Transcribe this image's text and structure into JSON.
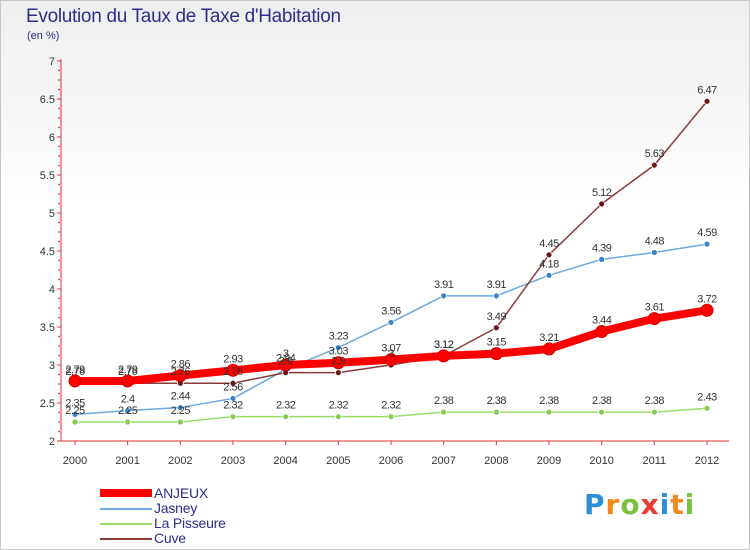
{
  "header": {
    "title": "Evolution du Taux de Taxe d'Habitation",
    "unit": "(en %)"
  },
  "logo": {
    "text": "Proxiti",
    "letter_colors": [
      "#2a8fd6",
      "#f08a1c",
      "#7ac142",
      "#e63a2c",
      "#2a8fd6",
      "#f08a1c",
      "#7ac142"
    ]
  },
  "chart_data": {
    "type": "line",
    "categories": [
      "2000",
      "2001",
      "2002",
      "2003",
      "2004",
      "2005",
      "2006",
      "2007",
      "2008",
      "2009",
      "2010",
      "2011",
      "2012"
    ],
    "ylim": [
      2,
      7
    ],
    "yticks": [
      "2",
      "2.5",
      "3",
      "3.5",
      "4",
      "4.5",
      "5",
      "5.5",
      "6",
      "6.5",
      "7"
    ],
    "grid": false,
    "legend_position": "bottom-left",
    "series": [
      {
        "name": "ANJEUX",
        "color": "#ff0000",
        "values": [
          2.79,
          2.79,
          2.86,
          2.93,
          3.0,
          3.03,
          3.07,
          3.12,
          3.15,
          3.21,
          3.44,
          3.61,
          3.72
        ],
        "labels": [
          "2.79",
          "2.79",
          "2.86",
          "2.93",
          "3",
          "3.03",
          "3.07",
          "3.12",
          "3.15",
          "3.21",
          "3.44",
          "3.61",
          "3.72"
        ]
      },
      {
        "name": "Jasney",
        "color": "#6fa8dc",
        "values": [
          2.35,
          2.4,
          2.44,
          2.56,
          2.94,
          3.23,
          3.56,
          3.91,
          3.91,
          4.18,
          4.39,
          4.48,
          4.59
        ],
        "labels": [
          "2.35",
          "2.4",
          "2.44",
          "2.56",
          "2.94",
          "3.23",
          "3.56",
          "3.91",
          "3.91",
          "4.18",
          "4.39",
          "4.48",
          "4.59"
        ]
      },
      {
        "name": "La Pisseure",
        "color": "#99dd66",
        "values": [
          2.25,
          2.25,
          2.25,
          2.32,
          2.32,
          2.32,
          2.32,
          2.38,
          2.38,
          2.38,
          2.38,
          2.38,
          2.43
        ],
        "labels": [
          "2.25",
          "2.25",
          "2.25",
          "2.32",
          "2.32",
          "2.32",
          "2.32",
          "2.38",
          "2.38",
          "2.38",
          "2.38",
          "2.38",
          "2.43"
        ]
      },
      {
        "name": "Cuve",
        "color": "#8b3a3a",
        "values": [
          2.76,
          2.76,
          2.76,
          2.76,
          2.9,
          2.9,
          3.0,
          3.12,
          3.49,
          4.45,
          5.12,
          5.63,
          6.47
        ],
        "labels": [
          "2.76",
          "2.76",
          "2.76",
          "2.76",
          "2.9",
          "2.9",
          "3",
          "3.12",
          "3.49",
          "4.45",
          "5.12",
          "5.63",
          "6.47"
        ]
      }
    ]
  }
}
